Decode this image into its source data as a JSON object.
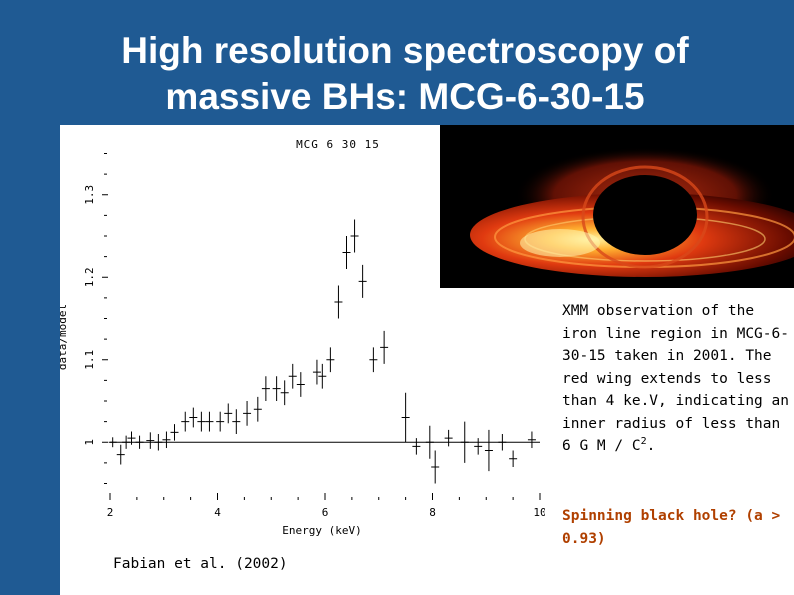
{
  "slide": {
    "title_line1": "High resolution spectroscopy of",
    "title_line2": "massive BHs: MCG-6-30-15",
    "caption": {
      "text": "XMM observation of the iron line region in MCG-6-30-15 taken in 2001. The red wing extends to less than 4 ke.V, indicating an inner radius of less than 6 G M / C",
      "superscript": "2",
      "end": "."
    },
    "question": "Spinning black hole? (a > 0.93)",
    "credit": "Fabian et al. (2002)",
    "image_alt": "black hole accretion disk illustration"
  },
  "chart_data": {
    "type": "scatter",
    "title": "MCG 6 30 15",
    "xlabel": "Energy (keV)",
    "ylabel": "data/model",
    "xlim": [
      2,
      10
    ],
    "ylim": [
      0.93,
      1.37
    ],
    "x_ticks": [
      "2",
      "4",
      "6",
      "8",
      "10"
    ],
    "y_ticks": [
      "1",
      "1.1",
      "1.2",
      "1.3"
    ],
    "reference_line": 1.0,
    "points": [
      {
        "x": 2.05,
        "y": 1.0,
        "ey": 0.006
      },
      {
        "x": 2.2,
        "y": 0.985,
        "ey": 0.012
      },
      {
        "x": 2.3,
        "y": 1.0,
        "ey": 0.008
      },
      {
        "x": 2.4,
        "y": 1.005,
        "ey": 0.008
      },
      {
        "x": 2.55,
        "y": 1.0,
        "ey": 0.008
      },
      {
        "x": 2.75,
        "y": 1.002,
        "ey": 0.01
      },
      {
        "x": 2.9,
        "y": 1.0,
        "ey": 0.01
      },
      {
        "x": 3.05,
        "y": 1.003,
        "ey": 0.01
      },
      {
        "x": 3.2,
        "y": 1.012,
        "ey": 0.01
      },
      {
        "x": 3.4,
        "y": 1.025,
        "ey": 0.012
      },
      {
        "x": 3.55,
        "y": 1.03,
        "ey": 0.012
      },
      {
        "x": 3.7,
        "y": 1.025,
        "ey": 0.012
      },
      {
        "x": 3.85,
        "y": 1.025,
        "ey": 0.012
      },
      {
        "x": 4.05,
        "y": 1.025,
        "ey": 0.012
      },
      {
        "x": 4.2,
        "y": 1.035,
        "ey": 0.012
      },
      {
        "x": 4.35,
        "y": 1.025,
        "ey": 0.015
      },
      {
        "x": 4.55,
        "y": 1.035,
        "ey": 0.015
      },
      {
        "x": 4.75,
        "y": 1.04,
        "ey": 0.015
      },
      {
        "x": 4.9,
        "y": 1.065,
        "ey": 0.015
      },
      {
        "x": 5.1,
        "y": 1.065,
        "ey": 0.015
      },
      {
        "x": 5.25,
        "y": 1.06,
        "ey": 0.015
      },
      {
        "x": 5.4,
        "y": 1.08,
        "ey": 0.015
      },
      {
        "x": 5.55,
        "y": 1.07,
        "ey": 0.015
      },
      {
        "x": 5.85,
        "y": 1.085,
        "ey": 0.015
      },
      {
        "x": 5.95,
        "y": 1.08,
        "ey": 0.015
      },
      {
        "x": 6.1,
        "y": 1.1,
        "ey": 0.015
      },
      {
        "x": 6.25,
        "y": 1.17,
        "ey": 0.02
      },
      {
        "x": 6.4,
        "y": 1.23,
        "ey": 0.02
      },
      {
        "x": 6.55,
        "y": 1.25,
        "ey": 0.02
      },
      {
        "x": 6.7,
        "y": 1.195,
        "ey": 0.02
      },
      {
        "x": 6.9,
        "y": 1.1,
        "ey": 0.015
      },
      {
        "x": 7.1,
        "y": 1.115,
        "ey": 0.02
      },
      {
        "x": 7.5,
        "y": 1.03,
        "ey": 0.03
      },
      {
        "x": 7.7,
        "y": 0.995,
        "ey": 0.01
      },
      {
        "x": 7.95,
        "y": 1.0,
        "ey": 0.02
      },
      {
        "x": 8.05,
        "y": 0.97,
        "ey": 0.02
      },
      {
        "x": 8.3,
        "y": 1.005,
        "ey": 0.01
      },
      {
        "x": 8.6,
        "y": 1.0,
        "ey": 0.025
      },
      {
        "x": 8.85,
        "y": 0.995,
        "ey": 0.01
      },
      {
        "x": 9.05,
        "y": 0.99,
        "ey": 0.025
      },
      {
        "x": 9.3,
        "y": 1.0,
        "ey": 0.01
      },
      {
        "x": 9.5,
        "y": 0.98,
        "ey": 0.01
      },
      {
        "x": 9.85,
        "y": 1.003,
        "ey": 0.01
      }
    ]
  }
}
